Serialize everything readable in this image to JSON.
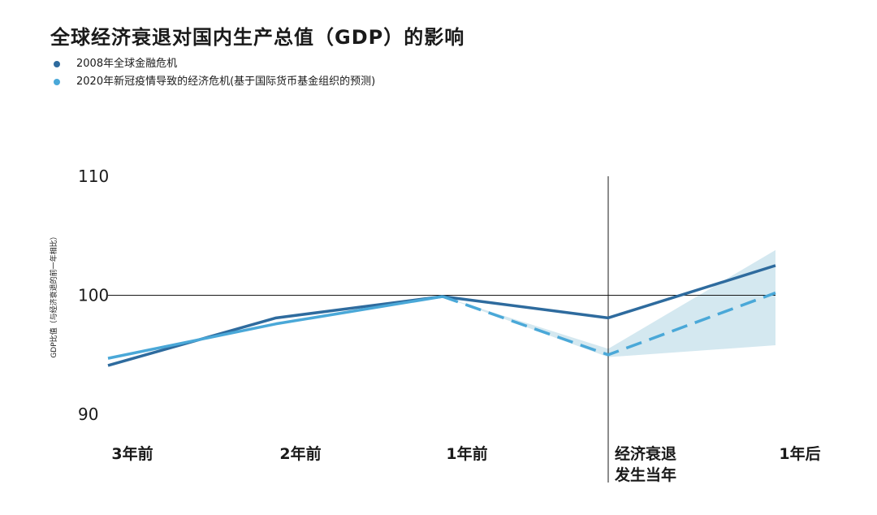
{
  "title": "全球经济衰退对国内生产总值（GDP）的影响",
  "chart_data": {
    "type": "line",
    "categories": [
      "3年前",
      "2年前",
      "1年前",
      "经济衰退发生当年",
      "1年后"
    ],
    "category_labels": [
      [
        "3年前"
      ],
      [
        "2年前"
      ],
      [
        "1年前"
      ],
      [
        "经济衰退",
        "发生当年"
      ],
      [
        "1年后"
      ]
    ],
    "ylabel": "GDP比值（与经济衰退的前一年相比）",
    "ylim": [
      90,
      110
    ],
    "yticks": [
      90,
      100,
      110
    ],
    "reference_line": 100,
    "recession_marker_category": "经济衰退发生当年",
    "series": [
      {
        "name": "2008年全球金融危机",
        "color": "#2e6b9e",
        "values": [
          94.1,
          98.1,
          99.9,
          98.1,
          102.5
        ],
        "style": "solid"
      },
      {
        "name": "2020年新冠疫情导致的经济危机(基于国际货币基金组织的预测)",
        "color": "#4aa8d8",
        "values": [
          94.7,
          97.6,
          99.9,
          95.0,
          100.2
        ],
        "style": "solid-then-dashed",
        "dashed_from": "1年前",
        "band_lower": [
          null,
          null,
          99.9,
          94.8,
          95.8
        ],
        "band_upper": [
          null,
          null,
          99.9,
          95.5,
          103.8
        ],
        "band_color": "#cfe6ee"
      }
    ]
  }
}
